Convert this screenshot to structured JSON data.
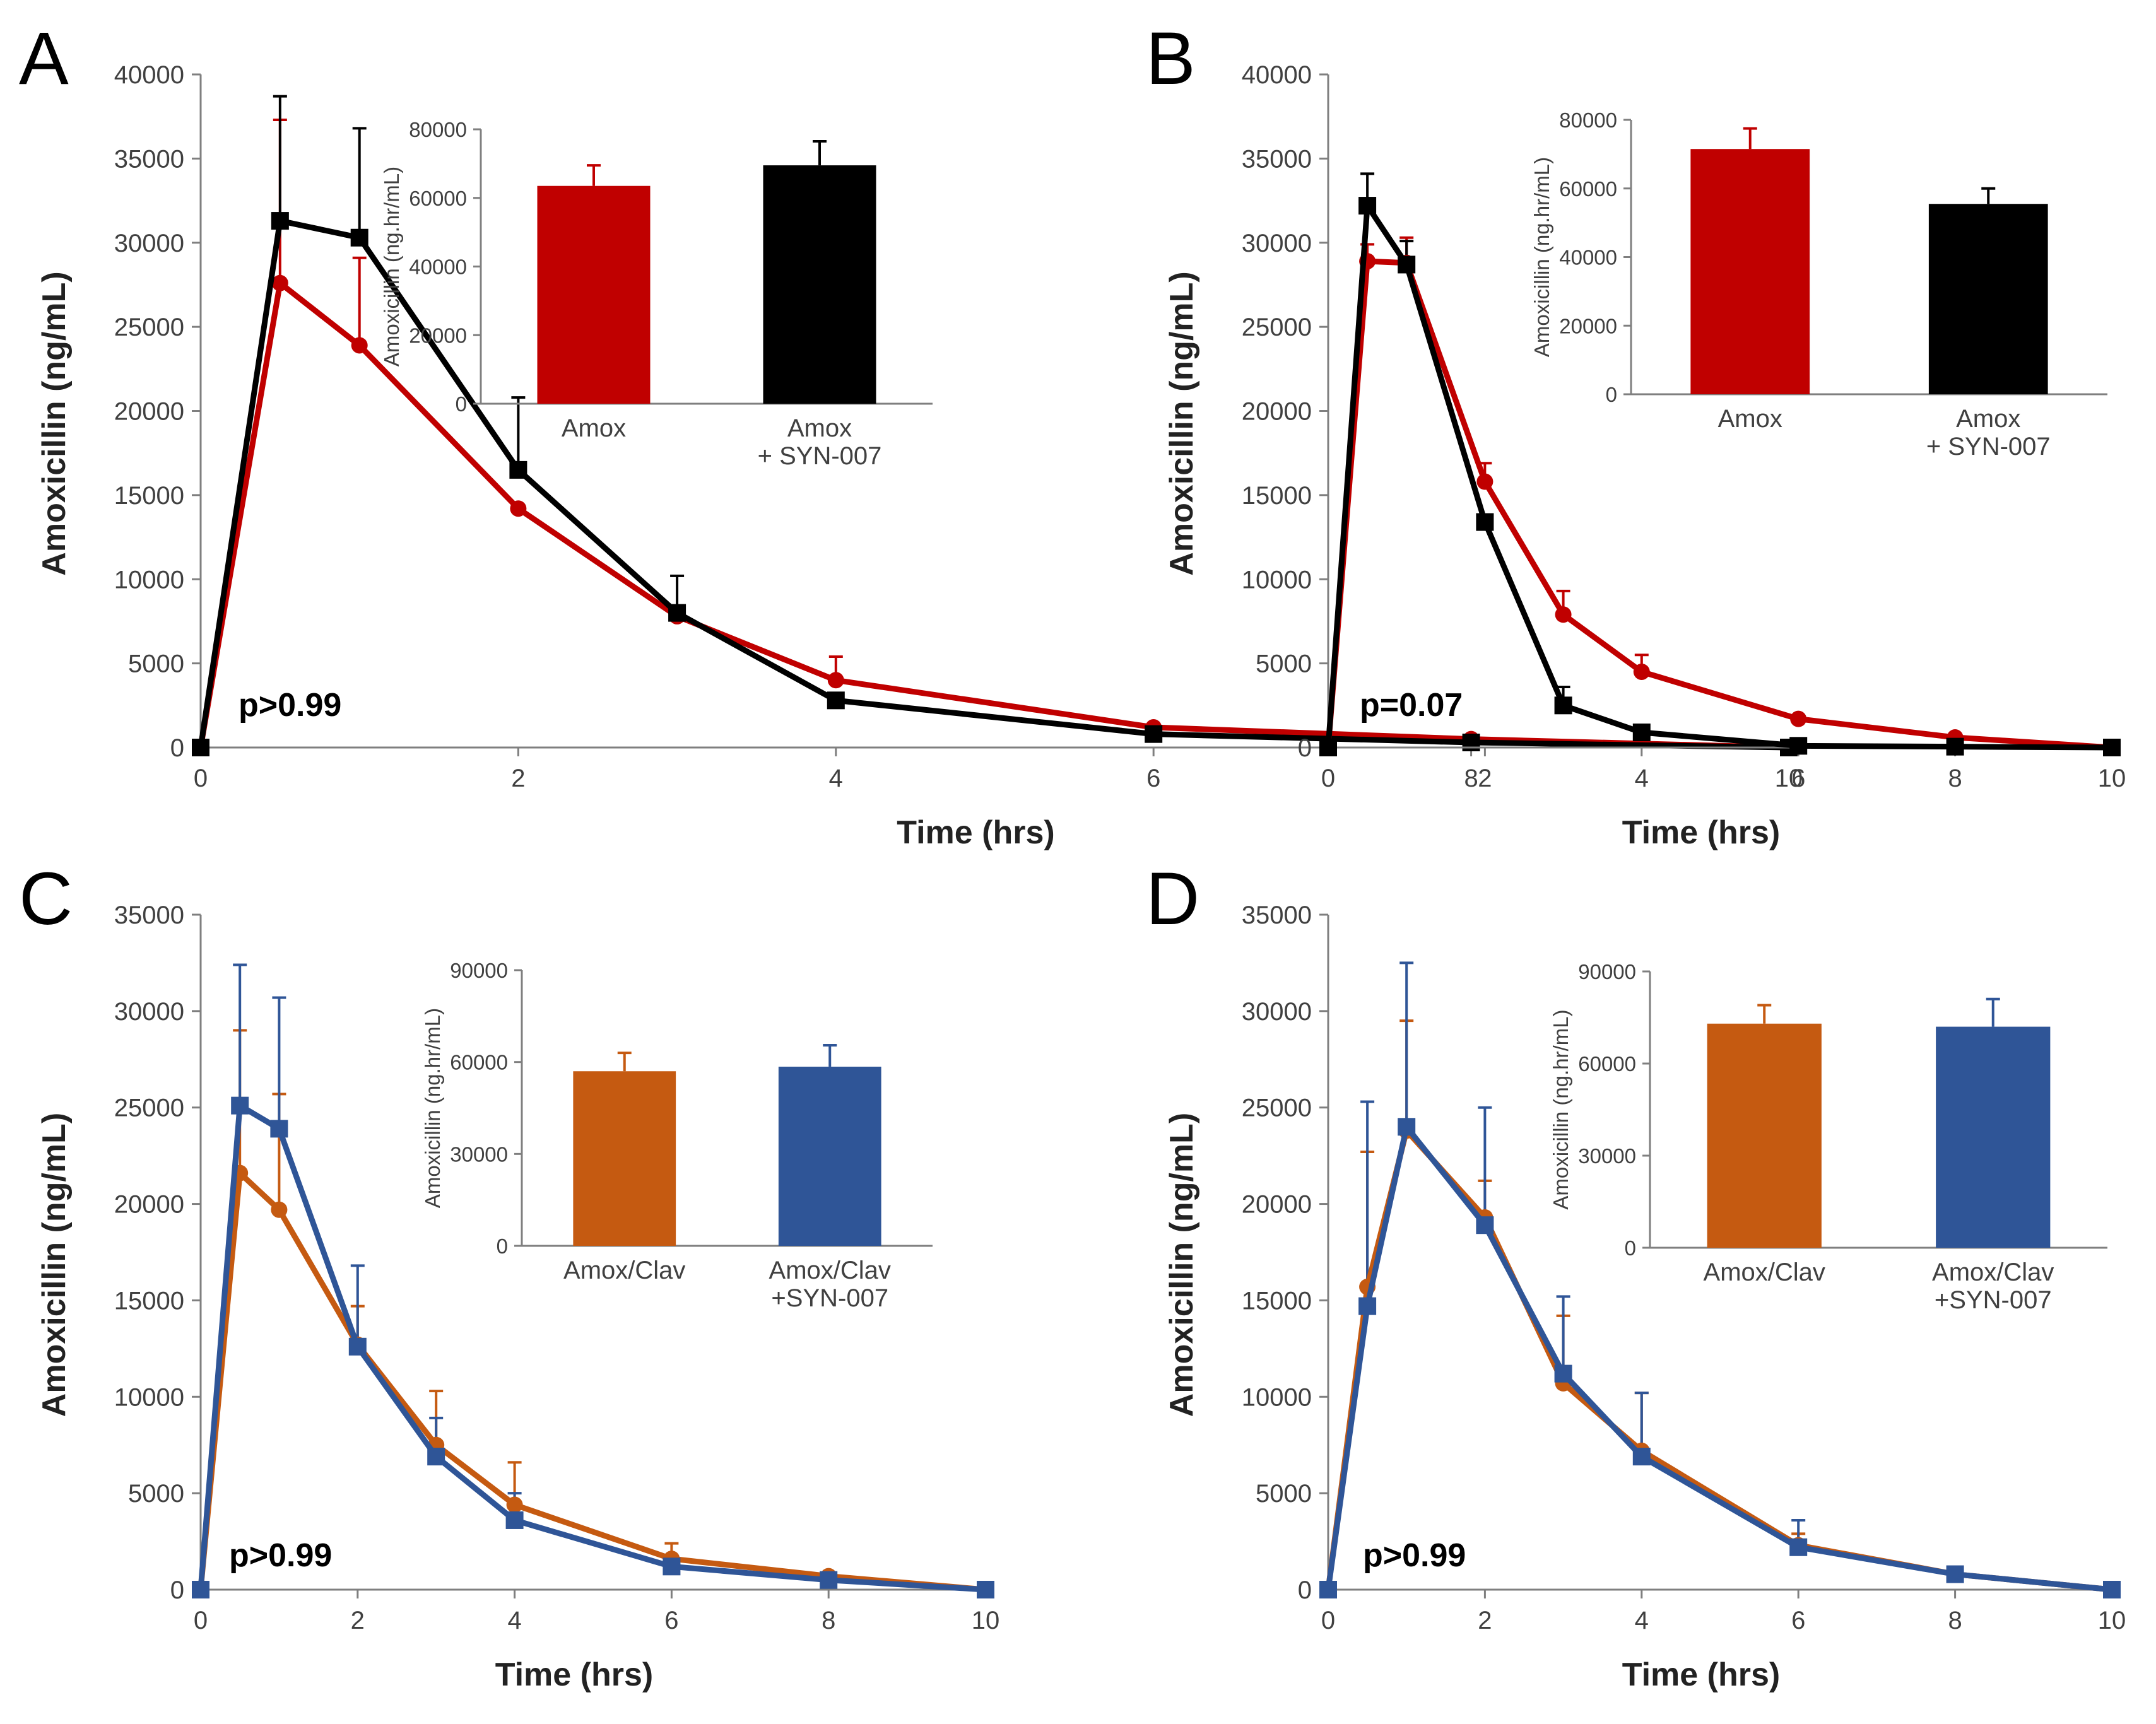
{
  "chart_data": [
    {
      "type": "line",
      "panel_label": "A",
      "xlabel": "Time  (hrs)",
      "ylabel": "Amoxicillin  (ng/mL)",
      "x_ticks": [
        "0",
        "2",
        "4",
        "6",
        "8",
        "10"
      ],
      "y_ticks": [
        "0",
        "5000",
        "10000",
        "15000",
        "20000",
        "25000",
        "30000",
        "35000",
        "40000"
      ],
      "xlim": [
        0,
        10
      ],
      "ylim": [
        0,
        40000
      ],
      "annotation": "p>0.99",
      "x": [
        0,
        0.5,
        1,
        2,
        3,
        4,
        6,
        8,
        10
      ],
      "series": [
        {
          "name": "Amox",
          "color": "#c00000",
          "marker": "circle",
          "values": [
            0,
            27600,
            23900,
            14200,
            7800,
            4000,
            1200,
            500,
            0
          ],
          "errors": [
            0,
            9700,
            5200,
            0,
            0,
            1400,
            0,
            0,
            0
          ]
        },
        {
          "name": "Amox + SYN-007",
          "color": "#000000",
          "marker": "square",
          "values": [
            0,
            31300,
            30300,
            16500,
            8000,
            2800,
            800,
            300,
            0
          ],
          "errors": [
            0,
            7400,
            6500,
            4300,
            2200,
            0,
            0,
            0,
            0
          ]
        }
      ],
      "inset": {
        "type": "bar",
        "ylabel": "Amoxicillin (ng.hr/mL)",
        "y_ticks": [
          "0",
          "20000",
          "40000",
          "60000",
          "80000"
        ],
        "ylim": [
          0,
          80000
        ],
        "categories": [
          [
            "Amox"
          ],
          [
            "Amox",
            "+ SYN-007"
          ]
        ],
        "values": [
          63500,
          69500
        ],
        "errors": [
          6000,
          7000
        ],
        "colors": [
          "#c00000",
          "#000000"
        ]
      }
    },
    {
      "type": "line",
      "panel_label": "B",
      "xlabel": "Time  (hrs)",
      "ylabel": "Amoxicillin  (ng/mL)",
      "x_ticks": [
        "0",
        "2",
        "4",
        "6",
        "8",
        "10"
      ],
      "y_ticks": [
        "0",
        "5000",
        "10000",
        "15000",
        "20000",
        "25000",
        "30000",
        "35000",
        "40000"
      ],
      "xlim": [
        0,
        10
      ],
      "ylim": [
        0,
        40000
      ],
      "annotation": "p=0.07",
      "x": [
        0,
        0.5,
        1,
        2,
        3,
        4,
        6,
        8,
        10
      ],
      "series": [
        {
          "name": "Amox",
          "color": "#c00000",
          "marker": "circle",
          "values": [
            0,
            28900,
            28800,
            15800,
            7900,
            4500,
            1700,
            600,
            0
          ],
          "errors": [
            0,
            1000,
            1500,
            1100,
            1400,
            1000,
            0,
            0,
            0
          ]
        },
        {
          "name": "Amox + SYN-007",
          "color": "#000000",
          "marker": "square",
          "values": [
            0,
            32200,
            28700,
            13400,
            2500,
            900,
            100,
            50,
            0
          ],
          "errors": [
            0,
            1900,
            1400,
            0,
            1100,
            0,
            0,
            0,
            0
          ]
        }
      ],
      "inset": {
        "type": "bar",
        "ylabel": "Amoxicillin (ng.hr/mL)",
        "y_ticks": [
          "0",
          "20000",
          "40000",
          "60000",
          "80000"
        ],
        "ylim": [
          0,
          80000
        ],
        "categories": [
          [
            "Amox"
          ],
          [
            "Amox",
            "+ SYN-007"
          ]
        ],
        "values": [
          71500,
          55500
        ],
        "errors": [
          6000,
          4500
        ],
        "colors": [
          "#c00000",
          "#000000"
        ]
      }
    },
    {
      "type": "line",
      "panel_label": "C",
      "xlabel": "Time  (hrs)",
      "ylabel": "Amoxicillin  (ng/mL)",
      "x_ticks": [
        "0",
        "2",
        "4",
        "6",
        "8",
        "10"
      ],
      "y_ticks": [
        "0",
        "5000",
        "10000",
        "15000",
        "20000",
        "25000",
        "30000",
        "35000"
      ],
      "xlim": [
        0,
        10
      ],
      "ylim": [
        0,
        35000
      ],
      "annotation": "p>0.99",
      "x": [
        0,
        0.5,
        1,
        2,
        3,
        4,
        6,
        8,
        10
      ],
      "series": [
        {
          "name": "Amox/Clav",
          "color": "#c55a11",
          "marker": "circle",
          "values": [
            0,
            21600,
            19700,
            12700,
            7500,
            4400,
            1600,
            700,
            0
          ],
          "errors": [
            0,
            7400,
            6000,
            2000,
            2800,
            2200,
            800,
            0,
            0
          ]
        },
        {
          "name": "Amox/Clav +SYN-007",
          "color": "#2f5597",
          "marker": "square",
          "values": [
            0,
            25100,
            23900,
            12600,
            6900,
            3600,
            1200,
            500,
            0
          ],
          "errors": [
            0,
            7300,
            6800,
            4200,
            2000,
            1400,
            500,
            0,
            0
          ]
        }
      ],
      "inset": {
        "type": "bar",
        "ylabel": "Amoxicillin (ng.hr/mL)",
        "y_ticks": [
          "0",
          "30000",
          "60000",
          "90000"
        ],
        "ylim": [
          0,
          90000
        ],
        "categories": [
          [
            "Amox/Clav"
          ],
          [
            "Amox/Clav",
            "+SYN-007"
          ]
        ],
        "values": [
          57000,
          58500
        ],
        "errors": [
          6000,
          7000
        ],
        "colors": [
          "#c55a11",
          "#2f5597"
        ]
      }
    },
    {
      "type": "line",
      "panel_label": "D",
      "xlabel": "Time  (hrs)",
      "ylabel": "Amoxicillin  (ng/mL)",
      "x_ticks": [
        "0",
        "2",
        "4",
        "6",
        "8",
        "10"
      ],
      "y_ticks": [
        "0",
        "5000",
        "10000",
        "15000",
        "20000",
        "25000",
        "30000",
        "35000"
      ],
      "xlim": [
        0,
        10
      ],
      "ylim": [
        0,
        35000
      ],
      "annotation": "p>0.99",
      "x": [
        0,
        0.5,
        1,
        2,
        3,
        4,
        6,
        8,
        10
      ],
      "series": [
        {
          "name": "Amox/Clav",
          "color": "#c55a11",
          "marker": "circle",
          "values": [
            0,
            15700,
            23800,
            19300,
            10700,
            7200,
            2300,
            800,
            0
          ],
          "errors": [
            0,
            7000,
            5700,
            1900,
            3500,
            3000,
            600,
            0,
            0
          ]
        },
        {
          "name": "Amox/Clav +SYN-007",
          "color": "#2f5597",
          "marker": "square",
          "values": [
            0,
            14700,
            24000,
            18900,
            11200,
            6900,
            2200,
            800,
            0
          ],
          "errors": [
            0,
            10600,
            8500,
            6100,
            4000,
            3300,
            1400,
            0,
            0
          ]
        }
      ],
      "inset": {
        "type": "bar",
        "ylabel": "Amoxicillin (ng.hr/mL)",
        "y_ticks": [
          "0",
          "30000",
          "60000",
          "90000"
        ],
        "ylim": [
          0,
          90000
        ],
        "categories": [
          [
            "Amox/Clav"
          ],
          [
            "Amox/Clav",
            "+SYN-007"
          ]
        ],
        "values": [
          73000,
          72000
        ],
        "errors": [
          6000,
          9000
        ],
        "colors": [
          "#c55a11",
          "#2f5597"
        ]
      }
    }
  ]
}
